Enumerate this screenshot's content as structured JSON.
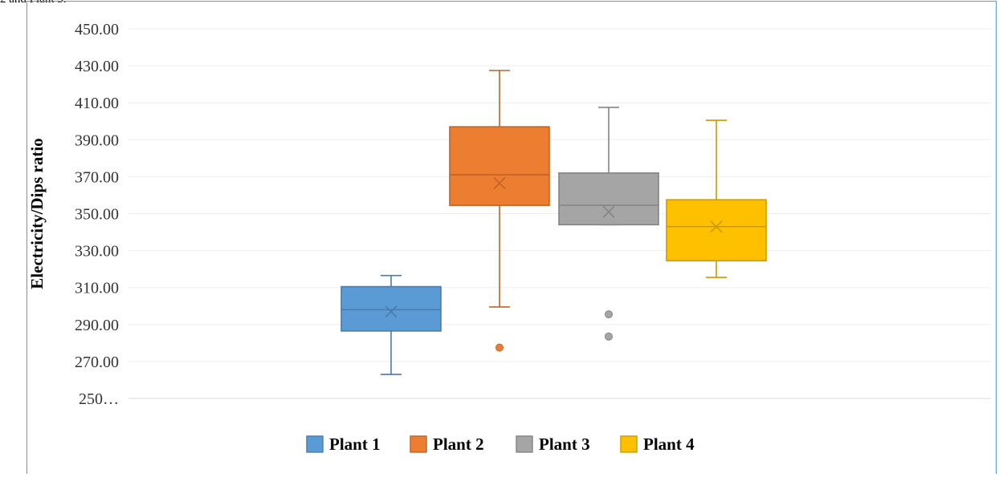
{
  "caption": "2 and Plant 3.",
  "chart_data": {
    "type": "box",
    "ylabel": "Electricity/Dips ratio",
    "ylim": [
      250,
      450
    ],
    "yticks": [
      "250…",
      "270.00",
      "290.00",
      "310.00",
      "330.00",
      "350.00",
      "370.00",
      "390.00",
      "410.00",
      "430.00",
      "450.00"
    ],
    "ytick_values": [
      250,
      270,
      290,
      310,
      330,
      350,
      370,
      390,
      410,
      430,
      450
    ],
    "grid": true,
    "legend_position": "bottom",
    "series": [
      {
        "name": "Plant 1",
        "color": "#5b9bd5",
        "min": 263,
        "q1": 286.5,
        "median": 298,
        "q3": 310.5,
        "max": 316.5,
        "mean": 297,
        "outliers": []
      },
      {
        "name": "Plant 2",
        "color": "#ed7d31",
        "min": 299.5,
        "q1": 354.5,
        "median": 371,
        "q3": 397,
        "max": 427.5,
        "mean": 366.5,
        "outliers": [
          277.5
        ]
      },
      {
        "name": "Plant 3",
        "color": "#a5a5a5",
        "min": 344,
        "q1": 344,
        "median": 354.5,
        "q3": 372,
        "max": 407.5,
        "mean": 351,
        "outliers": [
          295.5,
          283.5
        ]
      },
      {
        "name": "Plant 4",
        "color": "#ffc000",
        "min": 315.5,
        "q1": 324.5,
        "median": 343,
        "q3": 357.5,
        "max": 400.5,
        "mean": 343,
        "outliers": []
      }
    ]
  }
}
